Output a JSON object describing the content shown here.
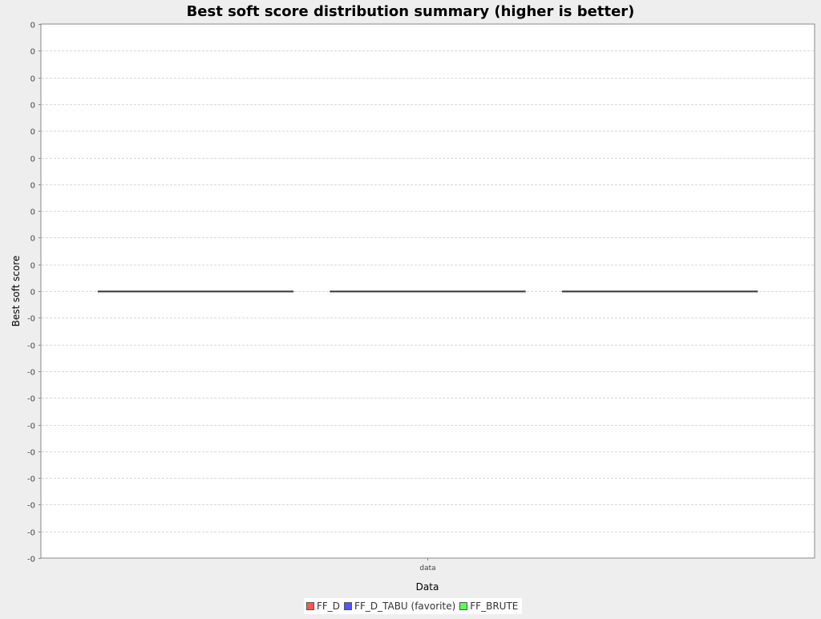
{
  "chart_data": {
    "type": "bar",
    "title": "Best soft score distribution summary (higher is better)",
    "xlabel": "Data",
    "ylabel": "Best soft score",
    "categories": [
      "data"
    ],
    "ylim": [
      -0.5,
      0.5
    ],
    "y_ticks": [
      0.5,
      0.45,
      0.4,
      0.35,
      0.3,
      0.25,
      0.2,
      0.15,
      0.1,
      0.05,
      0,
      -0.05,
      -0.1,
      -0.15,
      -0.2,
      -0.25,
      -0.3,
      -0.35,
      -0.4,
      -0.45,
      -0.5
    ],
    "y_tick_labels": [
      "0",
      "0",
      "0",
      "0",
      "0",
      "0",
      "0",
      "0",
      "0",
      "0",
      "0",
      "-0",
      "-0",
      "-0",
      "-0",
      "-0",
      "-0",
      "-0",
      "-0",
      "-0",
      "-0"
    ],
    "grid": true,
    "legend_position": "bottom",
    "series": [
      {
        "name": "FF_D",
        "values": [
          0
        ],
        "color": "#ff5555"
      },
      {
        "name": "FF_D_TABU (favorite)",
        "values": [
          0
        ],
        "color": "#5555ff"
      },
      {
        "name": "FF_BRUTE",
        "values": [
          0
        ],
        "color": "#55ff55"
      }
    ]
  }
}
